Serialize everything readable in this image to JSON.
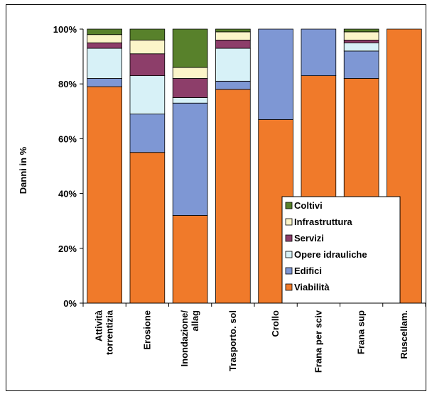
{
  "chart_data": {
    "type": "bar",
    "stacked": true,
    "ylabel": "Danni in %",
    "xlabel": "",
    "ylim": [
      0,
      100
    ],
    "y_ticks": [
      "0%",
      "20%",
      "40%",
      "60%",
      "80%",
      "100%"
    ],
    "categories": [
      [
        "Attività",
        "torrentizia"
      ],
      [
        "Erosione"
      ],
      [
        "Inondazione/",
        "allag"
      ],
      [
        "Trasporto. sol"
      ],
      [
        "Crollo"
      ],
      [
        "Frana per sciv"
      ],
      [
        "Frana sup"
      ],
      [
        "Ruscellam."
      ]
    ],
    "series": [
      {
        "name": "Viabilità",
        "color": "#F07A2A",
        "values": [
          79,
          55,
          32,
          78,
          67,
          83,
          82,
          100
        ]
      },
      {
        "name": "Edifici",
        "color": "#7E97D4",
        "values": [
          3,
          14,
          41,
          3,
          33,
          17,
          10,
          0
        ]
      },
      {
        "name": "Opere idrauliche",
        "color": "#D7F1F7",
        "values": [
          11,
          14,
          2,
          12,
          0,
          0,
          3,
          0
        ]
      },
      {
        "name": "Servizi",
        "color": "#8D3E6A",
        "values": [
          2,
          8,
          7,
          3,
          0,
          0,
          1,
          0
        ]
      },
      {
        "name": "Infrastruttura",
        "color": "#FBF5C9",
        "values": [
          3,
          5,
          4,
          3,
          0,
          0,
          3,
          0
        ]
      },
      {
        "name": "Coltivi",
        "color": "#58812B",
        "values": [
          2,
          4,
          14,
          1,
          0,
          0,
          1,
          0
        ]
      }
    ],
    "legend_position": "bottom-right",
    "grid": false
  }
}
